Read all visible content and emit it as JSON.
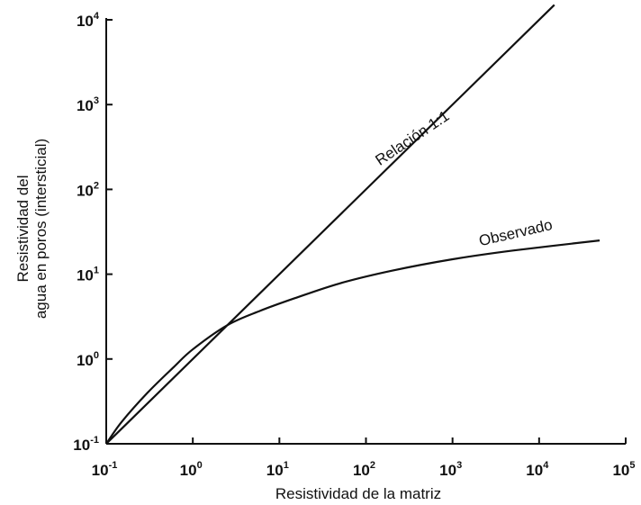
{
  "chart_data": {
    "type": "line",
    "title": "",
    "xlabel": "Resistividad de la matriz",
    "ylabel_lines": [
      "Resistividad del",
      "agua en poros (intersticial)"
    ],
    "x_scale": "log",
    "y_scale": "log",
    "xlim": [
      0.1,
      100000
    ],
    "ylim": [
      0.1,
      10000
    ],
    "x_ticks": [
      {
        "base": "10",
        "exp": "-1",
        "value": 0.1
      },
      {
        "base": "10",
        "exp": "0",
        "value": 1
      },
      {
        "base": "10",
        "exp": "1",
        "value": 10
      },
      {
        "base": "10",
        "exp": "2",
        "value": 100
      },
      {
        "base": "10",
        "exp": "3",
        "value": 1000
      },
      {
        "base": "10",
        "exp": "4",
        "value": 10000
      },
      {
        "base": "10",
        "exp": "5",
        "value": 100000
      }
    ],
    "y_ticks": [
      {
        "base": "10",
        "exp": "-1",
        "value": 0.1
      },
      {
        "base": "10",
        "exp": "0",
        "value": 1
      },
      {
        "base": "10",
        "exp": "1",
        "value": 10
      },
      {
        "base": "10",
        "exp": "2",
        "value": 100
      },
      {
        "base": "10",
        "exp": "3",
        "value": 1000
      },
      {
        "base": "10",
        "exp": "4",
        "value": 10000
      }
    ],
    "grid": false,
    "series": [
      {
        "name": "Relación 1:1",
        "x": [
          0.1,
          15000
        ],
        "y": [
          0.1,
          15000
        ]
      },
      {
        "name": "Observado",
        "x": [
          0.1,
          0.15,
          0.3,
          0.6,
          1,
          2.5,
          6,
          15,
          50,
          200,
          1000,
          5000,
          50000
        ],
        "y": [
          0.1,
          0.18,
          0.4,
          0.8,
          1.3,
          2.5,
          3.7,
          5.2,
          7.8,
          11,
          15,
          19,
          25
        ]
      }
    ]
  }
}
